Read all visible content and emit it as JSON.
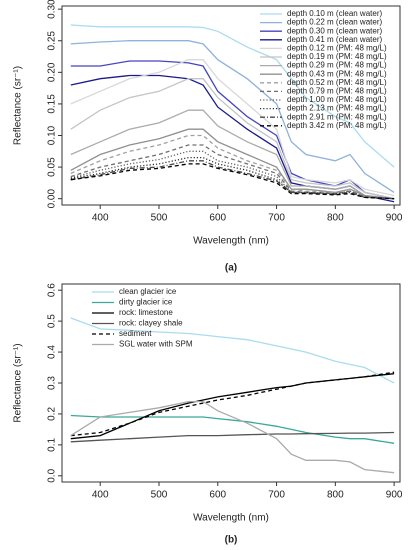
{
  "chart_data": [
    {
      "type": "line",
      "title": "(a)",
      "xlabel": "Wavelength (nm)",
      "ylabel": "Reflectance (sr⁻¹)",
      "x": [
        350,
        400,
        450,
        500,
        550,
        575,
        600,
        650,
        700,
        725,
        750,
        800,
        825,
        850,
        900
      ],
      "xlim": [
        335,
        910
      ],
      "xticks": [
        400,
        500,
        600,
        700,
        800,
        900
      ],
      "ylim": [
        -0.01,
        0.305
      ],
      "yticks": [
        {
          "value": 0,
          "label": "0.00"
        },
        {
          "value": 0.05,
          "label": "0.05"
        },
        {
          "value": 0.1,
          "label": "0.10"
        },
        {
          "value": 0.15,
          "label": "0.15"
        },
        {
          "value": 0.2,
          "label": "0.20"
        },
        {
          "value": 0.25,
          "label": "0.25"
        },
        {
          "value": 0.3,
          "label": "0.30"
        }
      ],
      "legend": "upper right",
      "series": [
        {
          "name": "depth 0.10 m (clean water)",
          "color": "#a9dcef",
          "style": "solid",
          "values": [
            0.275,
            0.272,
            0.272,
            0.272,
            0.272,
            0.271,
            0.265,
            0.24,
            0.22,
            0.19,
            0.16,
            0.13,
            0.12,
            0.09,
            0.05
          ]
        },
        {
          "name": "depth 0.22 m (clean water)",
          "color": "#8fb2d9",
          "style": "solid",
          "values": [
            0.245,
            0.248,
            0.25,
            0.25,
            0.25,
            0.245,
            0.22,
            0.19,
            0.15,
            0.09,
            0.07,
            0.06,
            0.07,
            0.04,
            0.01
          ]
        },
        {
          "name": "depth 0.30 m (clean water)",
          "color": "#4545c0",
          "style": "solid",
          "values": [
            0.21,
            0.21,
            0.218,
            0.218,
            0.215,
            0.21,
            0.17,
            0.13,
            0.1,
            0.04,
            0.03,
            0.02,
            0.03,
            0.01,
            0
          ]
        },
        {
          "name": "depth 0.41 m (clean water)",
          "color": "#1a1a8c",
          "style": "solid",
          "values": [
            0.18,
            0.19,
            0.195,
            0.195,
            0.19,
            0.18,
            0.145,
            0.11,
            0.08,
            0.025,
            0.02,
            0.015,
            0.02,
            0.005,
            -0.005
          ]
        },
        {
          "name": "depth 0.12 m (PM: 48 mg/L)",
          "color": "#d8d8d8",
          "style": "solid",
          "values": [
            0.15,
            0.17,
            0.19,
            0.2,
            0.22,
            0.22,
            0.19,
            0.15,
            0.11,
            0.035,
            0.03,
            0.025,
            0.03,
            0.015,
            0.005
          ]
        },
        {
          "name": "depth 0.19 m (PM: 48 mg/L)",
          "color": "#c4c4c4",
          "style": "solid",
          "values": [
            0.11,
            0.14,
            0.16,
            0.17,
            0.19,
            0.19,
            0.16,
            0.12,
            0.09,
            0.03,
            0.025,
            0.02,
            0.025,
            0.01,
            0
          ]
        },
        {
          "name": "depth 0.29 m (PM: 48 mg/L)",
          "color": "#acacac",
          "style": "solid",
          "values": [
            0.07,
            0.09,
            0.11,
            0.12,
            0.14,
            0.14,
            0.115,
            0.09,
            0.07,
            0.02,
            0.02,
            0.015,
            0.02,
            0.005,
            0
          ]
        },
        {
          "name": "depth 0.43 m (PM: 48 mg/L)",
          "color": "#909090",
          "style": "solid",
          "values": [
            0.045,
            0.07,
            0.085,
            0.095,
            0.11,
            0.11,
            0.09,
            0.07,
            0.05,
            0.015,
            0.015,
            0.01,
            0.015,
            0.005,
            0
          ]
        },
        {
          "name": "depth 0.52 m (PM: 48 mg/L)",
          "color": "#a0a0a0",
          "style": "dashed",
          "values": [
            0.04,
            0.06,
            0.075,
            0.085,
            0.1,
            0.1,
            0.08,
            0.06,
            0.045,
            0.015,
            0.012,
            0.01,
            0.015,
            0.003,
            0
          ]
        },
        {
          "name": "depth 0.79 m (PM: 48 mg/L)",
          "color": "#707070",
          "style": "dashed",
          "values": [
            0.035,
            0.05,
            0.06,
            0.07,
            0.085,
            0.085,
            0.07,
            0.055,
            0.04,
            0.012,
            0.01,
            0.008,
            0.012,
            0.003,
            0
          ]
        },
        {
          "name": "depth 1.00 m (PM: 48 mg/L)",
          "color": "#606060",
          "style": "dotted",
          "values": [
            0.033,
            0.045,
            0.055,
            0.062,
            0.075,
            0.075,
            0.06,
            0.05,
            0.035,
            0.01,
            0.01,
            0.008,
            0.012,
            0.003,
            0
          ]
        },
        {
          "name": "depth 2.13 m (PM: 48 mg/L)",
          "color": "#303030",
          "style": "dotted",
          "values": [
            0.032,
            0.04,
            0.05,
            0.055,
            0.065,
            0.065,
            0.055,
            0.045,
            0.03,
            0.01,
            0.01,
            0.008,
            0.01,
            0.002,
            0
          ]
        },
        {
          "name": "depth 2.91 m (PM: 48 mg/L)",
          "color": "#4a4a4a",
          "style": "dashdot",
          "values": [
            0.03,
            0.038,
            0.048,
            0.05,
            0.06,
            0.06,
            0.05,
            0.04,
            0.028,
            0.01,
            0.009,
            0.007,
            0.01,
            0.002,
            0
          ]
        },
        {
          "name": "depth 3.42 m (PM: 48 mg/L)",
          "color": "#000000",
          "style": "dashed",
          "values": [
            0.03,
            0.036,
            0.045,
            0.048,
            0.055,
            0.055,
            0.048,
            0.038,
            0.025,
            0.008,
            0.008,
            0.006,
            0.008,
            0.002,
            0
          ]
        }
      ]
    },
    {
      "type": "line",
      "title": "(b)",
      "xlabel": "Wavelength (nm)",
      "ylabel": "Reflectance (sr⁻¹)",
      "x": [
        350,
        400,
        450,
        500,
        550,
        575,
        600,
        650,
        700,
        725,
        750,
        800,
        825,
        850,
        900
      ],
      "xlim": [
        335,
        910
      ],
      "xticks": [
        400,
        500,
        600,
        700,
        800,
        900
      ],
      "ylim": [
        -0.02,
        0.62
      ],
      "yticks": [
        {
          "value": 0,
          "label": "0.0"
        },
        {
          "value": 0.1,
          "label": "0.1"
        },
        {
          "value": 0.2,
          "label": "0.2"
        },
        {
          "value": 0.3,
          "label": "0.3"
        },
        {
          "value": 0.4,
          "label": "0.4"
        },
        {
          "value": 0.5,
          "label": "0.5"
        },
        {
          "value": 0.6,
          "label": "0.6"
        }
      ],
      "legend": "upper left",
      "series": [
        {
          "name": "clean glacier ice",
          "color": "#a9dcef",
          "style": "solid",
          "values": [
            0.51,
            0.475,
            0.47,
            0.465,
            0.46,
            0.455,
            0.45,
            0.44,
            0.42,
            0.41,
            0.4,
            0.37,
            0.36,
            0.35,
            0.3
          ]
        },
        {
          "name": "dirty glacier ice",
          "color": "#3aa89a",
          "style": "solid",
          "values": [
            0.195,
            0.19,
            0.19,
            0.19,
            0.19,
            0.19,
            0.185,
            0.175,
            0.16,
            0.15,
            0.14,
            0.125,
            0.12,
            0.12,
            0.105
          ]
        },
        {
          "name": "rock: limestone",
          "color": "#000000",
          "style": "solid",
          "values": [
            0.12,
            0.13,
            0.17,
            0.21,
            0.235,
            0.245,
            0.255,
            0.27,
            0.285,
            0.29,
            0.3,
            0.31,
            0.315,
            0.32,
            0.33
          ]
        },
        {
          "name": "rock: clayey shale",
          "color": "#555555",
          "style": "solid",
          "values": [
            0.11,
            0.115,
            0.12,
            0.125,
            0.13,
            0.13,
            0.13,
            0.133,
            0.135,
            0.135,
            0.136,
            0.137,
            0.138,
            0.138,
            0.14
          ]
        },
        {
          "name": "sediment",
          "color": "#000000",
          "style": "dashed",
          "values": [
            0.13,
            0.14,
            0.17,
            0.205,
            0.225,
            0.235,
            0.245,
            0.26,
            0.28,
            0.29,
            0.3,
            0.31,
            0.315,
            0.32,
            0.335
          ]
        },
        {
          "name": "SGL water with SPM",
          "color": "#aaaaaa",
          "style": "solid",
          "values": [
            0.13,
            0.19,
            0.205,
            0.22,
            0.24,
            0.24,
            0.21,
            0.17,
            0.12,
            0.07,
            0.05,
            0.05,
            0.045,
            0.02,
            0.01
          ]
        }
      ]
    }
  ]
}
